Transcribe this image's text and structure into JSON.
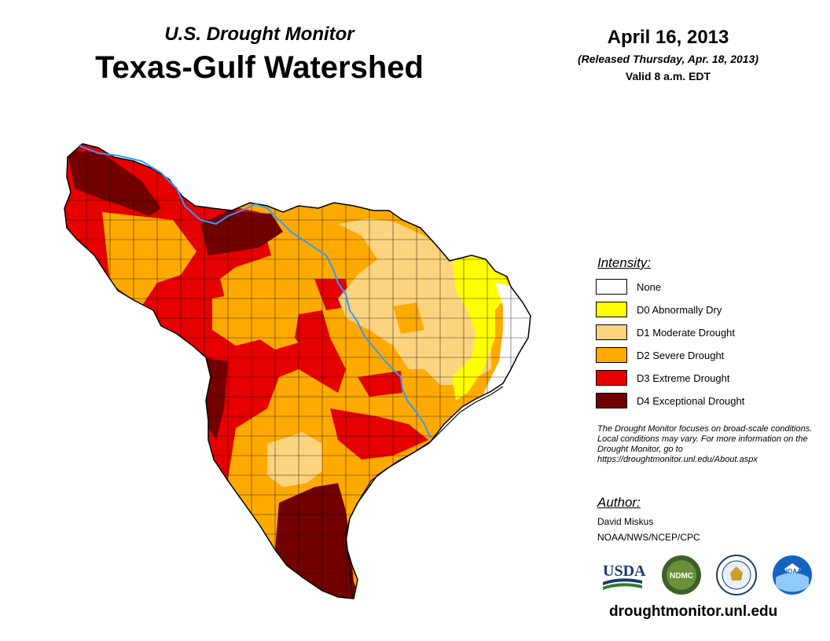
{
  "header": {
    "supertitle": "U.S. Drought Monitor",
    "title": "Texas-Gulf Watershed",
    "date": "April 16, 2013",
    "released": "(Released Thursday, Apr. 18, 2013)",
    "valid": "Valid 8 a.m. EDT"
  },
  "legend": {
    "heading": "Intensity:",
    "items": [
      {
        "label": "None",
        "color": "#ffffff"
      },
      {
        "label": "D0 Abnormally Dry",
        "color": "#ffff00"
      },
      {
        "label": "D1 Moderate Drought",
        "color": "#fcd37f"
      },
      {
        "label": "D2 Severe Drought",
        "color": "#ffaa00"
      },
      {
        "label": "D3 Extreme Drought",
        "color": "#e60000"
      },
      {
        "label": "D4 Exceptional Drought",
        "color": "#730000"
      }
    ]
  },
  "note": "The Drought Monitor focuses on broad-scale conditions. Local conditions may vary. For more information on the Drought Monitor, go to https://droughtmonitor.unl.edu/About.aspx",
  "author": {
    "heading": "Author:",
    "name": "David Miskus",
    "org": "NOAA/NWS/NCEP/CPC"
  },
  "logos": [
    {
      "name": "usda-logo",
      "text": "USDA"
    },
    {
      "name": "ndmc-logo",
      "text": "NDMC"
    },
    {
      "name": "commerce-seal-logo",
      "text": ""
    },
    {
      "name": "noaa-logo",
      "text": "NOAA"
    }
  ],
  "footer": {
    "site": "droughtmonitor.unl.edu"
  },
  "colors": {
    "river": "#3399ff",
    "boundary": "#000000"
  }
}
